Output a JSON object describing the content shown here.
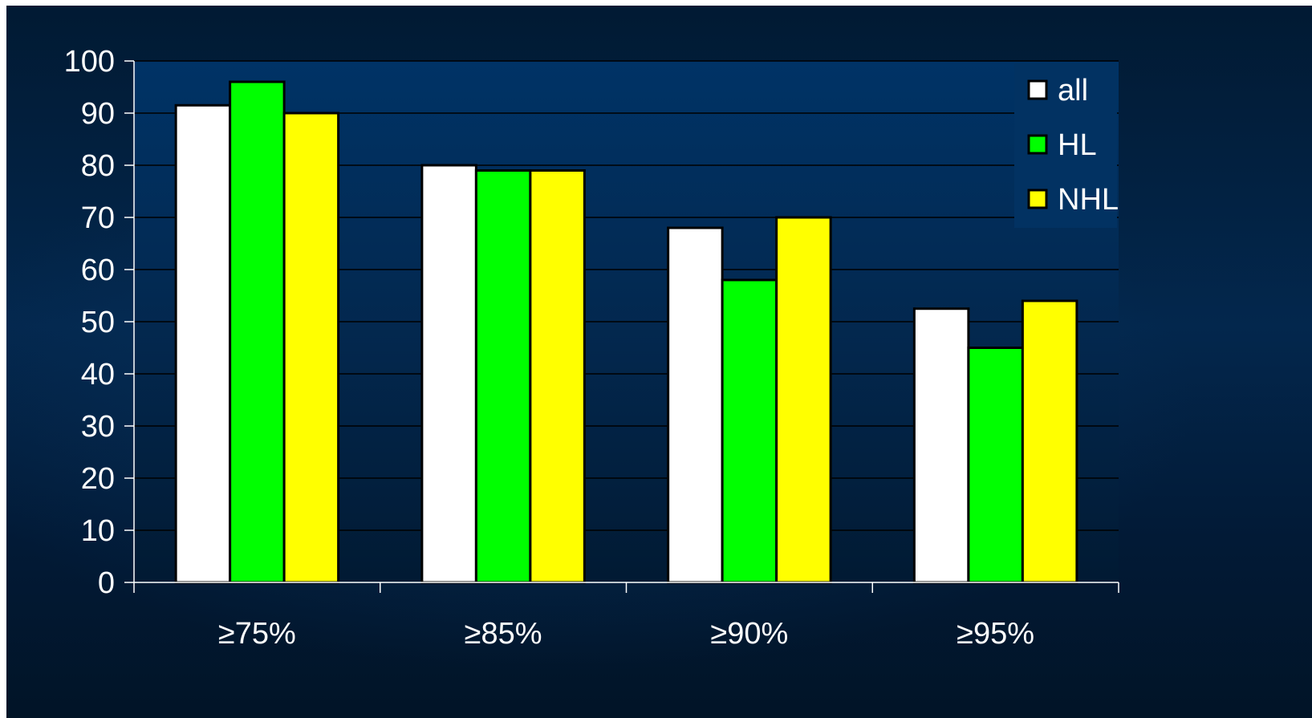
{
  "chart_data": {
    "type": "bar",
    "categories": [
      "≥75%",
      "≥85%",
      "≥90%",
      "≥95%"
    ],
    "series": [
      {
        "name": "all",
        "color": "#ffffff",
        "values": [
          91.5,
          80,
          68,
          52.5
        ]
      },
      {
        "name": "HL",
        "color": "#00ff00",
        "values": [
          96,
          79,
          58,
          45
        ]
      },
      {
        "name": "NHL",
        "color": "#ffff00",
        "values": [
          90,
          79,
          70,
          54
        ]
      }
    ],
    "ylim": [
      0,
      100
    ],
    "yticks": [
      "0",
      "10",
      "20",
      "30",
      "40",
      "50",
      "60",
      "70",
      "80",
      "90",
      "100"
    ],
    "grid": true,
    "legend_position": "top-right"
  }
}
